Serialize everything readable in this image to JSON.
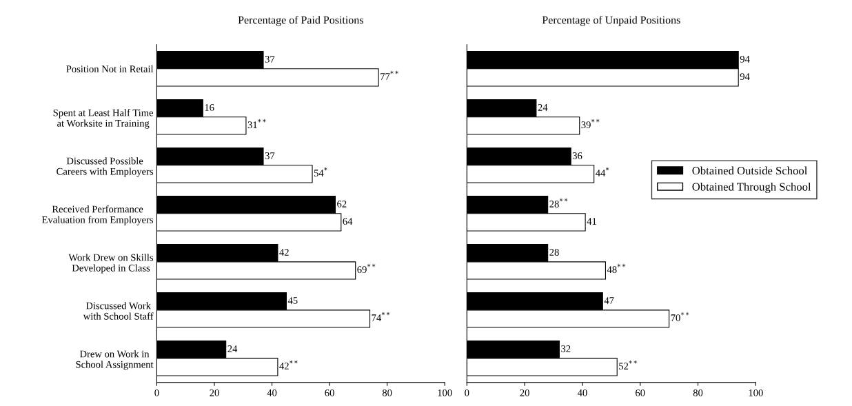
{
  "chart_data": [
    {
      "type": "bar",
      "orientation": "horizontal",
      "title": "Percentage of Paid Positions",
      "categories": [
        "Position Not in Retail",
        "Spent at Least Half Time\nat Worksite in Training",
        "Discussed Possible\nCareers with Employers",
        "Received Performance\nEvaluation from Employers",
        "Work Drew on Skills\nDeveloped in Class",
        "Discussed Work\nwith School Staff",
        "Drew on Work in\nSchool Assignment"
      ],
      "series": [
        {
          "color": "#000000",
          "values": [
            37,
            16,
            37,
            62,
            42,
            45,
            24
          ],
          "value_labels": [
            "37",
            "16",
            "37",
            "62",
            "42",
            "45",
            "24"
          ]
        },
        {
          "color": "#ffffff",
          "values": [
            77,
            31,
            54,
            64,
            69,
            74,
            42
          ],
          "value_labels": [
            "77$^{**}$",
            "31$^{**}$",
            "54$^{*}$",
            "64",
            "69$^{**}$",
            "74$^{**}$",
            "42$^{**}$"
          ]
        }
      ],
      "xlim": [
        0,
        100
      ],
      "xticks": [
        0,
        20,
        40,
        60,
        80,
        100
      ],
      "grid": false,
      "legend": false
    },
    {
      "type": "bar",
      "orientation": "horizontal",
      "title": "Percentage of Unpaid Positions",
      "categories": [
        null,
        null,
        null,
        null,
        null,
        null,
        null
      ],
      "series": [
        {
          "name": "Obtained Outside School",
          "color": "#000000",
          "values": [
            94,
            24,
            36,
            28,
            28,
            47,
            32
          ],
          "value_labels": [
            "94",
            "24",
            "36",
            "28$^{**}$",
            "28",
            "47",
            "32"
          ]
        },
        {
          "name": "Obtained Through School",
          "color": "#ffffff",
          "values": [
            94,
            39,
            44,
            41,
            48,
            70,
            52
          ],
          "value_labels": [
            "94",
            "39$^{**}$",
            "44$^{*}$",
            "41",
            "48$^{**}$",
            "70$^{**}$",
            "52$^{**}$"
          ]
        }
      ],
      "xlim": [
        0,
        100
      ],
      "xticks": [
        0,
        20,
        40,
        60,
        80,
        100
      ],
      "tick_labels": "x",
      "grid": false,
      "legend": "right"
    }
  ]
}
